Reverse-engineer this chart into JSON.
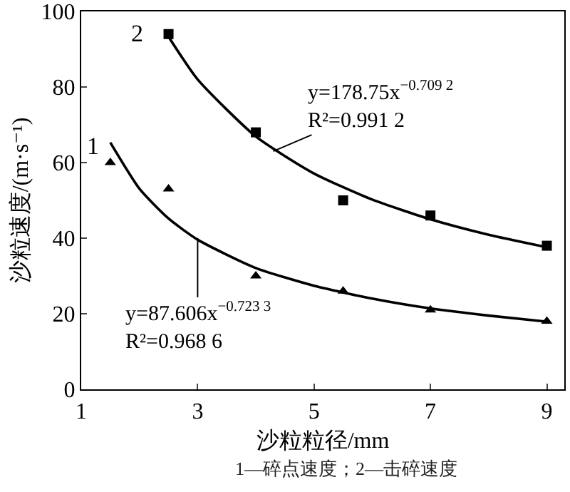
{
  "chart_data": {
    "type": "scatter",
    "xlabel": "沙粒粒径/mm",
    "ylabel": "沙粒速度/(m·s⁻¹)",
    "xlim": [
      1,
      9.3
    ],
    "xticks": [
      1,
      3,
      5,
      7,
      9
    ],
    "ylim": [
      0,
      100
    ],
    "yticks": [
      0,
      20,
      40,
      60,
      80,
      100
    ],
    "grid": false,
    "series": [
      {
        "marker": "square",
        "color": "#000000",
        "x": [
          2.5,
          4,
          5.5,
          7,
          9
        ],
        "values": [
          94,
          68,
          50,
          46,
          38
        ]
      },
      {
        "marker": "triangle",
        "color": "#000000",
        "x": [
          1.5,
          2.5,
          4,
          5.5,
          7,
          9
        ],
        "values": [
          60,
          53,
          30,
          26,
          21,
          18
        ]
      },
      {
        "type": "line",
        "marker": "none",
        "color": "#000000",
        "x": [
          2.5,
          3,
          4,
          5,
          6,
          7,
          8,
          9
        ],
        "values": [
          93.3,
          82.0,
          66.9,
          57.1,
          50.2,
          45.0,
          40.9,
          37.6
        ]
      },
      {
        "type": "line",
        "marker": "none",
        "color": "#000000",
        "x": [
          1.5,
          2,
          2.5,
          3,
          4,
          5,
          6,
          7,
          8,
          9
        ],
        "values": [
          65.3,
          53.1,
          45.2,
          39.6,
          32.1,
          27.4,
          24.0,
          21.4,
          19.5,
          17.9
        ]
      }
    ],
    "annotations": [
      {
        "text": "2",
        "x": 2.5,
        "y": 94
      },
      {
        "text": "y=178.75x$^{−0.709 2}$\nR²=0.991 2",
        "x": 4.3,
        "y": 63
      },
      {
        "text": "1",
        "x": 1.5,
        "y": 65
      },
      {
        "text": "y=87.606x$^{−0.723 3}$\nR²=0.968 6",
        "x": 3,
        "y": 40
      },
      "1—碎点速度；2—击碎速度"
    ]
  }
}
